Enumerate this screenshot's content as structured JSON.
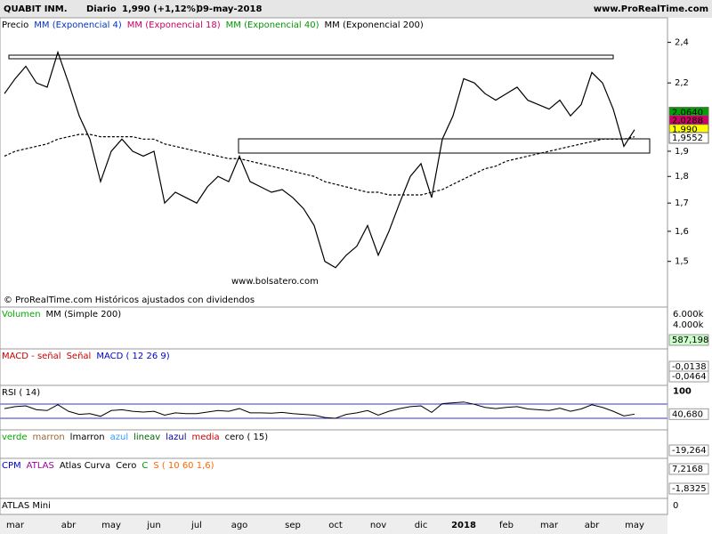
{
  "header": {
    "title": "QUABIT INM.",
    "period": "Diario",
    "quote": "1,990 (+1,12%)",
    "date": "09-may-2018",
    "site": "www.ProRealTime.com"
  },
  "chart_data": {
    "type": "line",
    "log_scale": true,
    "legend": [
      {
        "label": "Precio",
        "color": "#000000"
      },
      {
        "label": "MM (Exponencial 4)",
        "color": "#0033cc"
      },
      {
        "label": "MM (Exponencial 18)",
        "color": "#cc0066"
      },
      {
        "label": "MM (Exponencial 40)",
        "color": "#009900"
      },
      {
        "label": "MM (Exponencial 200)",
        "color": "#000000"
      }
    ],
    "watermark": "www.bolsatero.com",
    "note": "© ProRealTime.com Históricos ajustados con dividendos",
    "categories": [
      null,
      "mar",
      null,
      null,
      null,
      null,
      "abr",
      null,
      null,
      null,
      "may",
      null,
      null,
      null,
      "jun",
      null,
      null,
      null,
      "jul",
      null,
      null,
      null,
      "ago",
      null,
      null,
      null,
      null,
      "sep",
      null,
      null,
      null,
      "oct",
      null,
      null,
      null,
      "nov",
      null,
      null,
      null,
      "dic",
      null,
      null,
      null,
      "2018",
      null,
      null,
      null,
      "feb",
      null,
      null,
      null,
      "mar",
      null,
      null,
      null,
      "abr",
      null,
      null,
      null,
      "may"
    ],
    "series": [
      {
        "name": "Precio",
        "color": "#000000",
        "values": [
          2.15,
          2.22,
          2.28,
          2.2,
          2.18,
          2.35,
          2.2,
          2.05,
          1.95,
          1.78,
          1.9,
          1.95,
          1.9,
          1.88,
          1.9,
          1.7,
          1.74,
          1.72,
          1.7,
          1.76,
          1.8,
          1.78,
          1.88,
          1.78,
          1.76,
          1.74,
          1.75,
          1.72,
          1.68,
          1.62,
          1.5,
          1.48,
          1.52,
          1.55,
          1.62,
          1.52,
          1.6,
          1.7,
          1.8,
          1.85,
          1.72,
          1.95,
          2.05,
          2.22,
          2.2,
          2.15,
          2.12,
          2.15,
          2.18,
          2.12,
          2.1,
          2.08,
          2.12,
          2.05,
          2.1,
          2.25,
          2.2,
          2.08,
          1.92,
          1.99
        ]
      },
      {
        "name": "MM (Exponencial 200)",
        "color": "#000000",
        "values": [
          1.88,
          1.9,
          1.91,
          1.92,
          1.93,
          1.95,
          1.96,
          1.97,
          1.97,
          1.96,
          1.96,
          1.96,
          1.96,
          1.95,
          1.95,
          1.93,
          1.92,
          1.91,
          1.9,
          1.89,
          1.88,
          1.87,
          1.87,
          1.86,
          1.85,
          1.84,
          1.83,
          1.82,
          1.81,
          1.8,
          1.78,
          1.77,
          1.76,
          1.75,
          1.74,
          1.74,
          1.73,
          1.73,
          1.73,
          1.73,
          1.74,
          1.75,
          1.77,
          1.79,
          1.81,
          1.83,
          1.84,
          1.86,
          1.87,
          1.88,
          1.89,
          1.9,
          1.91,
          1.92,
          1.93,
          1.94,
          1.95,
          1.95,
          1.95,
          1.96
        ]
      }
    ],
    "ylim": [
      1.36,
      2.53
    ],
    "yticks": [
      {
        "value": 1.5,
        "label": "1,5"
      },
      {
        "value": 1.6,
        "label": "1,6"
      },
      {
        "value": 1.7,
        "label": "1,7"
      },
      {
        "value": 1.8,
        "label": "1,8"
      },
      {
        "value": 1.9,
        "label": "1,9"
      },
      {
        "value": 2.2,
        "label": "2,2"
      },
      {
        "value": 2.4,
        "label": "2,4"
      }
    ],
    "tags": [
      {
        "value": 2.064,
        "label": "2,0640",
        "color": "#00a000"
      },
      {
        "value": 2.0288,
        "label": "2,0288",
        "color": "#cc0066"
      },
      {
        "value": 1.99,
        "label": "1,990",
        "color": "#ffff00"
      },
      {
        "value": 1.9552,
        "label": "1,9552",
        "color": "#ffffff"
      }
    ]
  },
  "rsi": {
    "type": "line",
    "legend": [
      {
        "label": "RSI ( 14)",
        "color": "#000000"
      }
    ],
    "color": "#000000",
    "values": [
      55,
      60,
      62,
      52,
      50,
      65,
      48,
      40,
      42,
      35,
      50,
      52,
      48,
      46,
      48,
      38,
      44,
      42,
      42,
      46,
      50,
      48,
      55,
      44,
      44,
      43,
      45,
      42,
      40,
      38,
      32,
      30,
      40,
      44,
      50,
      38,
      48,
      55,
      60,
      62,
      45,
      68,
      70,
      72,
      66,
      58,
      55,
      58,
      60,
      54,
      52,
      50,
      56,
      48,
      54,
      65,
      58,
      48,
      36,
      40.68
    ],
    "value_labels_last": "40,680",
    "ylim": [
      0,
      115
    ],
    "yticks": [
      100
    ]
  },
  "panels": [
    {
      "legend": [
        {
          "label": "Volumen",
          "color": "#00aa00"
        },
        {
          "label": "MM (Simple 200)",
          "color": "#000000"
        }
      ],
      "axis_labels": [
        "6.000k",
        "4.000k"
      ],
      "tags": [
        {
          "label": "587,198",
          "color": "#ccffcc"
        }
      ]
    },
    {
      "legend": [
        {
          "label": "MACD - señal",
          "color": "#cc0000"
        },
        {
          "label": "Señal",
          "color": "#cc0000"
        },
        {
          "label": "MACD ( 12 26 9)",
          "color": "#0000cc"
        }
      ],
      "axis_labels": [],
      "tags": [
        {
          "label": "-0,0138",
          "color": "#ffffff"
        },
        {
          "label": "-0,0464",
          "color": "#ffffff"
        }
      ]
    },
    {
      "legend": [
        {
          "label": "verde",
          "color": "#00aa00"
        },
        {
          "label": "marron",
          "color": "#996633"
        },
        {
          "label": "lmarron",
          "color": "#000000"
        },
        {
          "label": "azul",
          "color": "#3399ff"
        },
        {
          "label": "lineav",
          "color": "#006600"
        },
        {
          "label": "lazul",
          "color": "#000099"
        },
        {
          "label": "media",
          "color": "#cc0000"
        },
        {
          "label": "cero ( 15)",
          "color": "#000000"
        }
      ],
      "axis_labels": [],
      "tags": [
        {
          "label": "-19,264",
          "color": "#ffffff"
        }
      ]
    },
    {
      "legend": [
        {
          "label": "CPM",
          "color": "#0000cc"
        },
        {
          "label": "ATLAS",
          "color": "#990099"
        },
        {
          "label": "Atlas Curva",
          "color": "#000000"
        },
        {
          "label": "Cero",
          "color": "#000000"
        },
        {
          "label": "C",
          "color": "#009900"
        },
        {
          "label": "S ( 10 60 1,6)",
          "color": "#ff6600"
        }
      ],
      "axis_labels": [],
      "tags": [
        {
          "label": "7,2168",
          "color": "#ffffff"
        },
        {
          "label": "-1,8325",
          "color": "#ffffff"
        }
      ]
    },
    {
      "legend": [
        {
          "label": "ATLAS Mini",
          "color": "#000000"
        }
      ],
      "axis_labels": [
        "0"
      ],
      "tags": []
    }
  ]
}
